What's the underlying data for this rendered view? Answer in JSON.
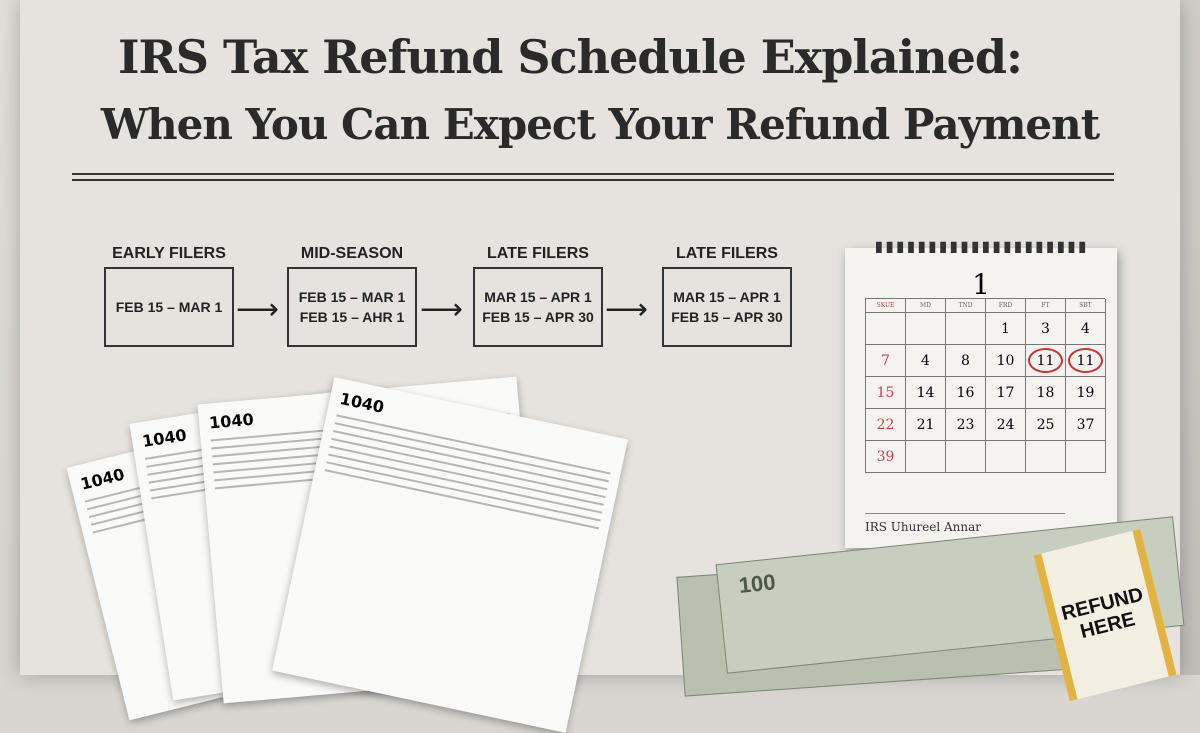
{
  "title": {
    "line1": "IRS Tax Refund Schedule  Explained:",
    "line2": "When You Can Expect Your Refund Payment"
  },
  "stages": [
    {
      "label": "EARLY FILERS",
      "lines": [
        "FEB 15 – MAR 1"
      ]
    },
    {
      "label": "MID-SEASON",
      "lines": [
        "FEB 15 – MAR 1",
        "FEB 15 – AHR 1"
      ]
    },
    {
      "label": "LATE FILERS",
      "lines": [
        "MAR 15 – APR 1",
        "FEB 15 – APR 30"
      ]
    },
    {
      "label": "LATE FILERS",
      "lines": [
        "MAR 15 – APR 1",
        "FEB 15 – APR 30"
      ]
    }
  ],
  "calendar": {
    "month": "1",
    "headers": [
      "SKUE",
      "MD",
      "TND",
      "FRD",
      "FT",
      "SBT"
    ],
    "rows": [
      [
        "",
        "",
        "",
        "1",
        "3",
        "4"
      ],
      [
        "7",
        "4",
        "8",
        "10",
        "11",
        "11"
      ],
      [
        "15",
        "14",
        "16",
        "17",
        "18",
        "19"
      ],
      [
        "22",
        "21",
        "23",
        "24",
        "25",
        "37"
      ],
      [
        "39",
        "",
        "",
        "",
        "",
        ""
      ]
    ],
    "circled": [
      "1-4",
      "1-5"
    ],
    "footer": "IRS Uhureel Annar",
    "circle_color": "#c33333"
  },
  "forms": {
    "label": "1040"
  },
  "money": {
    "band_text": [
      "REFUND",
      "HERE"
    ],
    "bill_text": "100"
  }
}
